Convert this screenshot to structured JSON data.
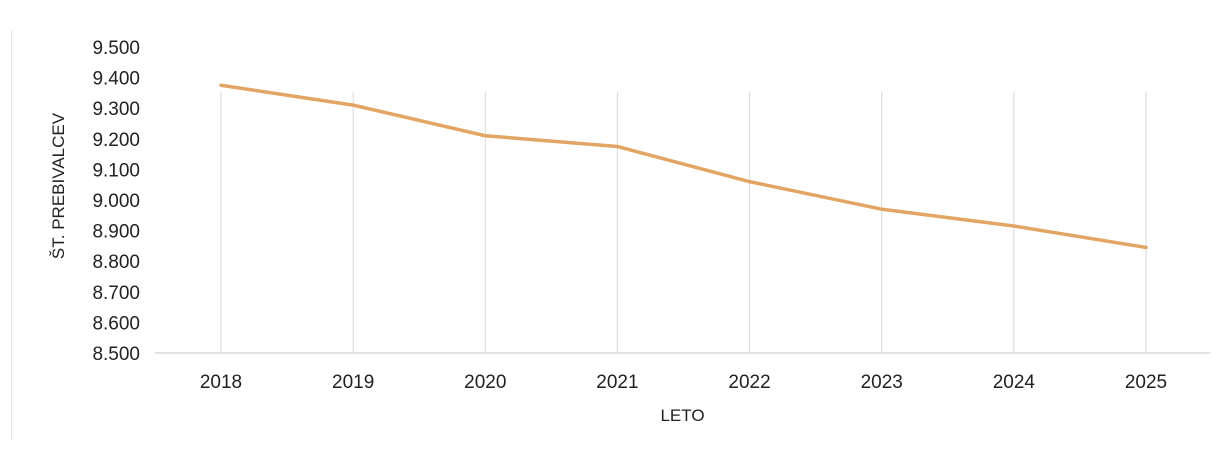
{
  "chart_data": {
    "type": "line",
    "x": [
      "2018",
      "2019",
      "2020",
      "2021",
      "2022",
      "2023",
      "2024",
      "2025"
    ],
    "series": [
      {
        "values": [
          9375,
          9310,
          9210,
          9175,
          9060,
          8970,
          8915,
          8845
        ]
      }
    ],
    "xlabel": "LETO",
    "ylabel": "ŠT. PREBIVALCEV",
    "ylim": [
      8500,
      9500
    ],
    "ytick_step": 100,
    "yticks": [
      "8.500",
      "8.600",
      "8.700",
      "8.800",
      "8.900",
      "9.000",
      "9.100",
      "9.200",
      "9.300",
      "9.400",
      "9.500"
    ],
    "grid": "vertical",
    "legend": "none",
    "colors": {
      "line": "#E2A563",
      "grid": "#d9d9d9",
      "axis": "#d9d9d9"
    }
  }
}
